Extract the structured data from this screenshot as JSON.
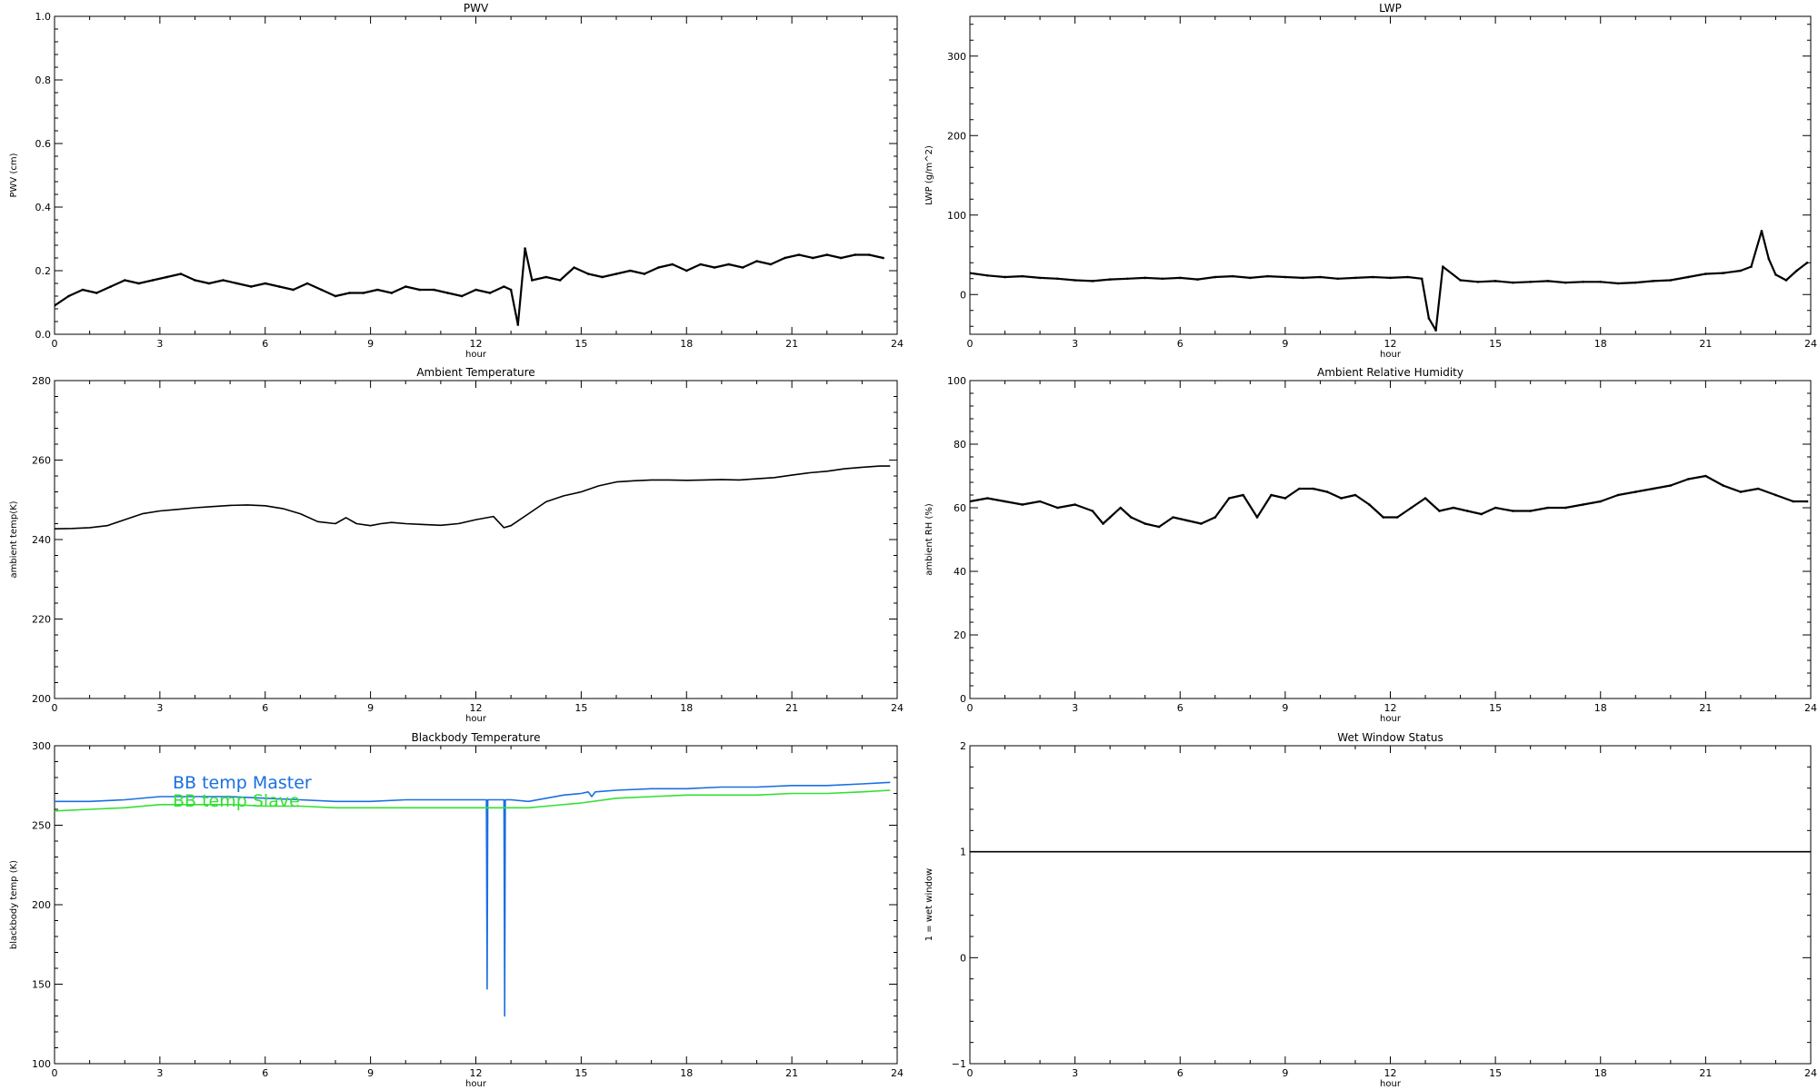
{
  "chart_data": [
    {
      "id": "pwv",
      "type": "scatter",
      "title": "PWV",
      "xlabel": "hour",
      "ylabel": "PWV (cm)",
      "xlim": [
        0,
        24
      ],
      "ylim": [
        0.0,
        1.0
      ],
      "xticks": [
        0,
        3,
        6,
        9,
        12,
        15,
        18,
        21,
        24
      ],
      "yticks": [
        0.0,
        0.2,
        0.4,
        0.6,
        0.8,
        1.0
      ],
      "ytick_labels": [
        "0.0",
        "0.2",
        "0.4",
        "0.6",
        "0.8",
        "1.0"
      ],
      "series": [
        {
          "color": "#000000",
          "x": [
            0,
            0.4,
            0.8,
            1.2,
            1.6,
            2.0,
            2.4,
            2.8,
            3.2,
            3.6,
            4.0,
            4.4,
            4.8,
            5.2,
            5.6,
            6.0,
            6.4,
            6.8,
            7.2,
            7.6,
            8.0,
            8.4,
            8.8,
            9.2,
            9.6,
            10.0,
            10.4,
            10.8,
            11.2,
            11.6,
            12.0,
            12.4,
            12.8,
            13.0,
            13.2,
            13.4,
            13.6,
            14.0,
            14.4,
            14.8,
            15.2,
            15.6,
            16.0,
            16.4,
            16.8,
            17.2,
            17.6,
            18.0,
            18.4,
            18.8,
            19.2,
            19.6,
            20.0,
            20.4,
            20.8,
            21.2,
            21.6,
            22.0,
            22.4,
            22.8,
            23.2,
            23.6
          ],
          "y": [
            0.09,
            0.12,
            0.14,
            0.13,
            0.15,
            0.17,
            0.16,
            0.17,
            0.18,
            0.19,
            0.17,
            0.16,
            0.17,
            0.16,
            0.15,
            0.16,
            0.15,
            0.14,
            0.16,
            0.14,
            0.12,
            0.13,
            0.13,
            0.14,
            0.13,
            0.15,
            0.14,
            0.14,
            0.13,
            0.12,
            0.14,
            0.13,
            0.15,
            0.14,
            0.03,
            0.27,
            0.17,
            0.18,
            0.17,
            0.21,
            0.19,
            0.18,
            0.19,
            0.2,
            0.19,
            0.21,
            0.22,
            0.2,
            0.22,
            0.21,
            0.22,
            0.21,
            0.23,
            0.22,
            0.24,
            0.25,
            0.24,
            0.25,
            0.24,
            0.25,
            0.25,
            0.24
          ]
        }
      ]
    },
    {
      "id": "lwp",
      "type": "scatter",
      "title": "LWP",
      "xlabel": "hour",
      "ylabel": "LWP (g/m^2)",
      "xlim": [
        0,
        24
      ],
      "ylim": [
        -50,
        350
      ],
      "xticks": [
        0,
        3,
        6,
        9,
        12,
        15,
        18,
        21,
        24
      ],
      "yticks": [
        0,
        100,
        200,
        300
      ],
      "ytick_labels": [
        "0",
        "100",
        "200",
        "300"
      ],
      "series": [
        {
          "color": "#000000",
          "x": [
            0,
            0.5,
            1.0,
            1.5,
            2.0,
            2.5,
            3.0,
            3.5,
            4.0,
            4.5,
            5.0,
            5.5,
            6.0,
            6.5,
            7.0,
            7.5,
            8.0,
            8.5,
            9.0,
            9.5,
            10.0,
            10.5,
            11.0,
            11.5,
            12.0,
            12.5,
            12.9,
            13.1,
            13.3,
            13.5,
            14.0,
            14.5,
            15.0,
            15.5,
            16.0,
            16.5,
            17.0,
            17.5,
            18.0,
            18.5,
            19.0,
            19.5,
            20.0,
            20.5,
            21.0,
            21.5,
            22.0,
            22.3,
            22.6,
            22.8,
            23.0,
            23.3,
            23.6,
            23.9
          ],
          "y": [
            27,
            24,
            22,
            23,
            21,
            20,
            18,
            17,
            19,
            20,
            21,
            20,
            21,
            19,
            22,
            23,
            21,
            23,
            22,
            21,
            22,
            20,
            21,
            22,
            21,
            22,
            20,
            -30,
            -45,
            35,
            18,
            16,
            17,
            15,
            16,
            17,
            15,
            16,
            16,
            14,
            15,
            17,
            18,
            22,
            26,
            27,
            30,
            35,
            80,
            45,
            25,
            18,
            30,
            40
          ]
        }
      ]
    },
    {
      "id": "ambient_temp",
      "type": "line",
      "title": "Ambient Temperature",
      "xlabel": "hour",
      "ylabel": "ambient temp(K)",
      "xlim": [
        0,
        24
      ],
      "ylim": [
        200,
        280
      ],
      "xticks": [
        0,
        3,
        6,
        9,
        12,
        15,
        18,
        21,
        24
      ],
      "yticks": [
        200,
        220,
        240,
        260,
        280
      ],
      "ytick_labels": [
        "200",
        "220",
        "240",
        "260",
        "280"
      ],
      "series": [
        {
          "color": "#000000",
          "x": [
            0,
            0.5,
            1.0,
            1.5,
            2.0,
            2.5,
            3.0,
            3.5,
            4.0,
            4.5,
            5.0,
            5.5,
            6.0,
            6.5,
            7.0,
            7.5,
            8.0,
            8.3,
            8.6,
            9.0,
            9.3,
            9.6,
            10.0,
            10.5,
            11.0,
            11.5,
            12.0,
            12.5,
            12.8,
            13.0,
            13.5,
            14.0,
            14.5,
            15.0,
            15.5,
            16.0,
            16.5,
            17.0,
            17.5,
            18.0,
            18.5,
            19.0,
            19.5,
            20.0,
            20.5,
            21.0,
            21.5,
            22.0,
            22.5,
            23.0,
            23.5,
            23.8
          ],
          "y": [
            242.7,
            242.8,
            243.0,
            243.5,
            245.0,
            246.5,
            247.2,
            247.6,
            248.0,
            248.3,
            248.6,
            248.7,
            248.5,
            247.8,
            246.5,
            244.5,
            244.0,
            245.5,
            244.0,
            243.5,
            244.0,
            244.3,
            244.0,
            243.8,
            243.6,
            244.0,
            245.0,
            245.8,
            243.0,
            243.5,
            246.5,
            249.5,
            251.0,
            252.0,
            253.5,
            254.5,
            254.8,
            255.0,
            255.0,
            254.9,
            255.0,
            255.1,
            255.0,
            255.3,
            255.6,
            256.2,
            256.8,
            257.2,
            257.8,
            258.2,
            258.5,
            258.5
          ]
        }
      ]
    },
    {
      "id": "ambient_rh",
      "type": "scatter",
      "title": "Ambient Relative Humidity",
      "xlabel": "hour",
      "ylabel": "ambient RH (%)",
      "xlim": [
        0,
        24
      ],
      "ylim": [
        0,
        100
      ],
      "xticks": [
        0,
        3,
        6,
        9,
        12,
        15,
        18,
        21,
        24
      ],
      "yticks": [
        0,
        20,
        40,
        60,
        80,
        100
      ],
      "ytick_labels": [
        "0",
        "20",
        "40",
        "60",
        "80",
        "100"
      ],
      "series": [
        {
          "color": "#000000",
          "x": [
            0,
            0.5,
            1.0,
            1.5,
            2.0,
            2.5,
            3.0,
            3.5,
            3.8,
            4.0,
            4.3,
            4.6,
            5.0,
            5.4,
            5.8,
            6.2,
            6.6,
            7.0,
            7.4,
            7.8,
            8.2,
            8.6,
            9.0,
            9.4,
            9.8,
            10.2,
            10.6,
            11.0,
            11.4,
            11.8,
            12.2,
            12.6,
            13.0,
            13.4,
            13.8,
            14.2,
            14.6,
            15.0,
            15.5,
            16.0,
            16.5,
            17.0,
            17.5,
            18.0,
            18.5,
            19.0,
            19.5,
            20.0,
            20.5,
            21.0,
            21.5,
            22.0,
            22.5,
            23.0,
            23.5,
            23.9
          ],
          "y": [
            62,
            63,
            62,
            61,
            62,
            60,
            61,
            59,
            55,
            57,
            60,
            57,
            55,
            54,
            57,
            56,
            55,
            57,
            63,
            64,
            57,
            64,
            63,
            66,
            66,
            65,
            63,
            64,
            61,
            57,
            57,
            60,
            63,
            59,
            60,
            59,
            58,
            60,
            59,
            59,
            60,
            60,
            61,
            62,
            64,
            65,
            66,
            67,
            69,
            70,
            67,
            65,
            66,
            64,
            62,
            62
          ]
        }
      ]
    },
    {
      "id": "bb_temp",
      "type": "line",
      "title": "Blackbody Temperature",
      "xlabel": "hour",
      "ylabel": "blackbody temp (K)",
      "xlim": [
        0,
        24
      ],
      "ylim": [
        100,
        300
      ],
      "xticks": [
        0,
        3,
        6,
        9,
        12,
        15,
        18,
        21,
        24
      ],
      "yticks": [
        100,
        150,
        200,
        250,
        300
      ],
      "ytick_labels": [
        "100",
        "150",
        "200",
        "250",
        "300"
      ],
      "legend": [
        "BB temp Master",
        "BB temp Slave"
      ],
      "series": [
        {
          "name": "BB temp Master",
          "color": "#1a6fe0",
          "x": [
            0,
            1.0,
            2.0,
            3.0,
            4.0,
            5.0,
            6.0,
            7.0,
            8.0,
            9.0,
            10.0,
            11.0,
            12.0,
            12.3,
            12.32,
            12.34,
            12.4,
            12.8,
            12.82,
            12.84,
            12.9,
            13.0,
            13.5,
            14.0,
            14.5,
            15.0,
            15.2,
            15.3,
            15.4,
            16.0,
            17.0,
            18.0,
            19.0,
            20.0,
            21.0,
            22.0,
            23.0,
            23.8
          ],
          "y": [
            265,
            265,
            266,
            268,
            268,
            268,
            267,
            266,
            265,
            265,
            266,
            266,
            266,
            266,
            147,
            266,
            266,
            266,
            130,
            266,
            266,
            266,
            265,
            267,
            269,
            270,
            271,
            268,
            271,
            272,
            273,
            273,
            274,
            274,
            275,
            275,
            276,
            277
          ]
        },
        {
          "name": "BB temp Slave",
          "color": "#33e033",
          "x": [
            0,
            1.0,
            2.0,
            3.0,
            4.0,
            5.0,
            6.0,
            7.0,
            8.0,
            9.0,
            10.0,
            11.0,
            12.0,
            12.5,
            13.0,
            13.5,
            14.0,
            15.0,
            16.0,
            17.0,
            18.0,
            19.0,
            20.0,
            21.0,
            22.0,
            23.0,
            23.8
          ],
          "y": [
            259,
            260,
            261,
            263,
            263,
            263,
            262,
            262,
            261,
            261,
            261,
            261,
            261,
            261,
            261,
            261,
            262,
            264,
            267,
            268,
            269,
            269,
            269,
            270,
            270,
            271,
            272
          ]
        }
      ]
    },
    {
      "id": "wet_window",
      "type": "line",
      "title": "Wet Window Status",
      "xlabel": "hour",
      "ylabel": "1 = wet window",
      "xlim": [
        0,
        24
      ],
      "ylim": [
        -1,
        2
      ],
      "xticks": [
        0,
        3,
        6,
        9,
        12,
        15,
        18,
        21,
        24
      ],
      "yticks": [
        -1,
        0,
        1,
        2
      ],
      "ytick_labels": [
        "−1",
        "0",
        "1",
        "2"
      ],
      "series": [
        {
          "color": "#000000",
          "x": [
            0,
            24
          ],
          "y": [
            1,
            1
          ]
        }
      ]
    }
  ]
}
